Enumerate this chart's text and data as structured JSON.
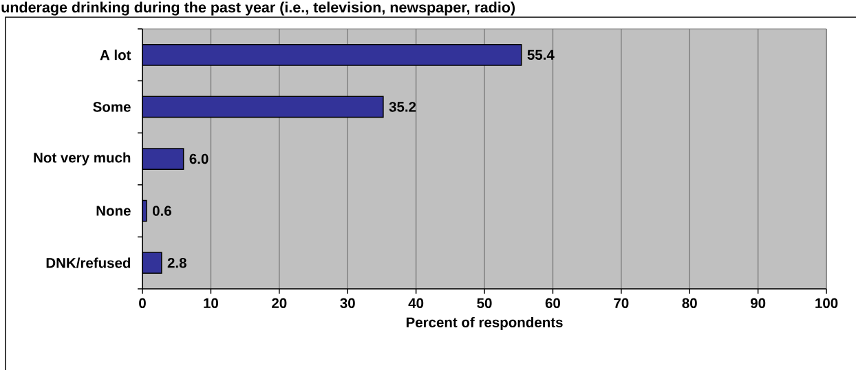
{
  "chart_data": {
    "type": "bar",
    "orientation": "horizontal",
    "title": "underage drinking during the past year (i.e., television, newspaper, radio)",
    "xlabel": "Percent of respondents",
    "categories": [
      "A lot",
      "Some",
      "Not very much",
      "None",
      "DNK/refused"
    ],
    "values": [
      55.4,
      35.2,
      6.0,
      0.6,
      2.8
    ],
    "value_labels": [
      "55.4",
      "35.2",
      "6.0",
      "0.6",
      "2.8"
    ],
    "color": "#333399",
    "xlim": [
      0,
      100
    ],
    "xticks": [
      0,
      10,
      20,
      30,
      40,
      50,
      60,
      70,
      80,
      90,
      100
    ],
    "grid": "x"
  }
}
